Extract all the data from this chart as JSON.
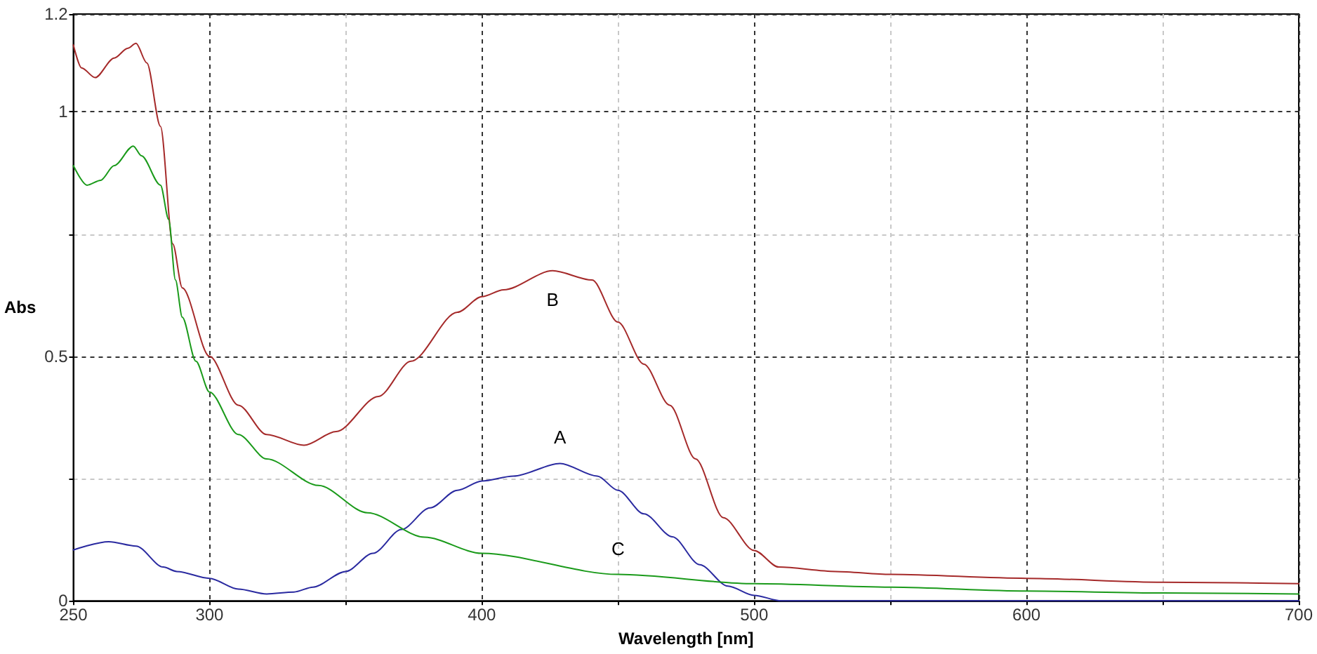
{
  "chart_data": {
    "type": "line",
    "xlabel": "Wavelength [nm]",
    "ylabel": "Abs",
    "xlim": [
      250,
      700
    ],
    "xticks": [
      250,
      300,
      {
        "value": 350,
        "label": null
      },
      400,
      {
        "value": 450,
        "label": null
      },
      500,
      {
        "value": 550,
        "label": null
      },
      600,
      {
        "value": 650,
        "label": null
      },
      700
    ],
    "ylim": [
      0,
      1.2
    ],
    "yticks": [
      0,
      {
        "value": 0.25,
        "label": null
      },
      0.5,
      {
        "value": 0.75,
        "label": null
      },
      1,
      1.2
    ],
    "grid": true,
    "marker": "none",
    "line_style": "solid",
    "series": [
      {
        "name": "A",
        "color": "#2a2aa0",
        "x": [
          250,
          263,
          273,
          283,
          288,
          300,
          310.6,
          321,
          331,
          338,
          350,
          360,
          370.5,
          381,
          391,
          400,
          411.6,
          428.7,
          442.4,
          450,
          459.5,
          470,
          480,
          490.4,
          500,
          510,
          600,
          700
        ],
        "values": [
          0.104,
          0.121,
          0.112,
          0.069,
          0.06,
          0.046,
          0.024,
          0.014,
          0.018,
          0.028,
          0.06,
          0.097,
          0.146,
          0.19,
          0.226,
          0.245,
          0.255,
          0.281,
          0.255,
          0.226,
          0.178,
          0.131,
          0.074,
          0.03,
          0.011,
          0,
          0,
          0
        ]
      },
      {
        "name": "B",
        "color": "#a52a2a",
        "x": [
          250,
          253,
          258,
          265,
          270,
          273,
          277,
          282,
          286.5,
          290,
          300,
          310.6,
          321,
          334.7,
          346.5,
          362,
          374,
          391,
          400,
          408,
          426,
          440.5,
          450,
          459.5,
          469,
          478.5,
          488.7,
          500,
          509,
          530,
          550,
          600,
          650,
          700
        ],
        "values": [
          1.137,
          1.09,
          1.07,
          1.11,
          1.13,
          1.14,
          1.1,
          0.97,
          0.73,
          0.64,
          0.5,
          0.4,
          0.34,
          0.318,
          0.346,
          0.418,
          0.49,
          0.59,
          0.622,
          0.636,
          0.675,
          0.656,
          0.57,
          0.484,
          0.4,
          0.29,
          0.17,
          0.103,
          0.069,
          0.06,
          0.054,
          0.046,
          0.038,
          0.035
        ]
      },
      {
        "name": "C",
        "color": "#1a9a1a",
        "x": [
          250,
          255,
          260,
          265,
          272,
          275,
          282,
          285,
          287.5,
          290,
          295,
          300,
          310.6,
          321,
          340,
          358,
          379,
          400,
          450,
          500,
          550,
          600,
          650,
          700
        ],
        "values": [
          0.89,
          0.85,
          0.86,
          0.89,
          0.93,
          0.91,
          0.85,
          0.78,
          0.656,
          0.58,
          0.49,
          0.427,
          0.34,
          0.29,
          0.236,
          0.18,
          0.13,
          0.097,
          0.054,
          0.035,
          0.028,
          0.02,
          0.016,
          0.014
        ]
      }
    ]
  }
}
